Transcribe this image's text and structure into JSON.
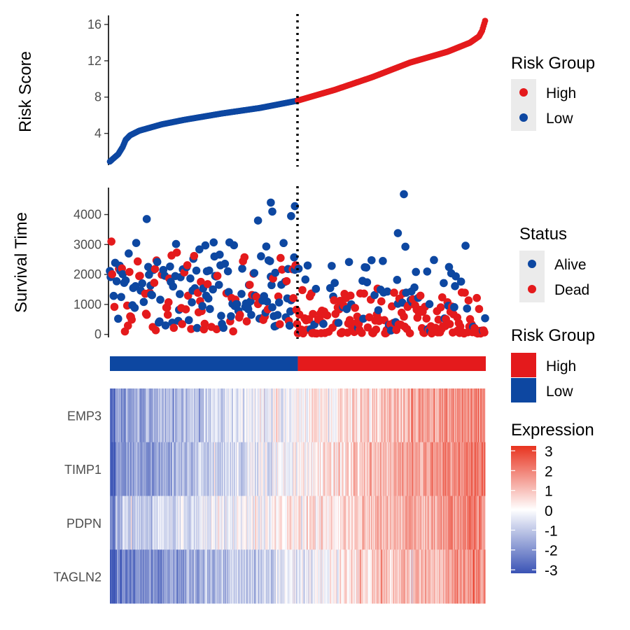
{
  "colors": {
    "high": "#E41A1C",
    "low": "#0D47A1",
    "heat_low": "#3A53B5",
    "heat_mid": "#FFFFFF",
    "heat_high": "#E8331F",
    "legend_bg": "#EBEBEB"
  },
  "chart_data": [
    {
      "type": "scatter",
      "panel": "risk-score",
      "ylabel": "Risk Score",
      "yticks": [
        4,
        8,
        12,
        16
      ],
      "ylim": [
        0.5,
        17
      ],
      "n_samples": 500,
      "cutoff_rank": 250,
      "cutoff_score": 7.6,
      "curve": [
        {
          "rank": 1,
          "score": 0.9
        },
        {
          "rank": 5,
          "score": 1.2
        },
        {
          "rank": 12,
          "score": 1.7
        },
        {
          "rank": 18,
          "score": 2.5
        },
        {
          "rank": 22,
          "score": 3.3
        },
        {
          "rank": 28,
          "score": 3.8
        },
        {
          "rank": 40,
          "score": 4.3
        },
        {
          "rank": 70,
          "score": 5.0
        },
        {
          "rank": 100,
          "score": 5.5
        },
        {
          "rank": 150,
          "score": 6.2
        },
        {
          "rank": 200,
          "score": 6.8
        },
        {
          "rank": 250,
          "score": 7.6
        },
        {
          "rank": 300,
          "score": 8.8
        },
        {
          "rank": 350,
          "score": 10.2
        },
        {
          "rank": 400,
          "score": 11.8
        },
        {
          "rank": 450,
          "score": 13.0
        },
        {
          "rank": 480,
          "score": 14.0
        },
        {
          "rank": 492,
          "score": 14.7
        },
        {
          "rank": 496,
          "score": 15.3
        },
        {
          "rank": 500,
          "score": 16.4
        }
      ]
    },
    {
      "type": "scatter",
      "panel": "survival-time",
      "ylabel": "Survival Time",
      "yticks": [
        0,
        1000,
        2000,
        3000,
        4000
      ],
      "ylim": [
        -100,
        4900
      ],
      "highlights": [
        {
          "rank": 215,
          "time": 4400,
          "status": "Alive"
        },
        {
          "rank": 217,
          "time": 4100,
          "status": "Alive"
        },
        {
          "rank": 247,
          "time": 4280,
          "status": "Alive"
        },
        {
          "rank": 242,
          "time": 3950,
          "status": "Alive"
        },
        {
          "rank": 392,
          "time": 4680,
          "status": "Alive"
        },
        {
          "rank": 384,
          "time": 3380,
          "status": "Alive"
        },
        {
          "rank": 198,
          "time": 3800,
          "status": "Alive"
        },
        {
          "rank": 50,
          "time": 3850,
          "status": "Alive"
        },
        {
          "rank": 3,
          "time": 3100,
          "status": "Dead"
        }
      ]
    },
    {
      "type": "heatmap",
      "panel": "expression",
      "genes": [
        "EMP3",
        "TIMP1",
        "PDPN",
        "TAGLN2"
      ],
      "value_range": [
        -3,
        3
      ],
      "trend_start": [
        -1.8,
        -2.0,
        -1.1,
        -2.4
      ],
      "trend_end": [
        1.9,
        2.1,
        1.7,
        1.8
      ]
    }
  ],
  "legends": {
    "risk_group_points": {
      "title": "Risk Group",
      "items": [
        {
          "label": "High",
          "color": "#E41A1C"
        },
        {
          "label": "Low",
          "color": "#0D47A1"
        }
      ]
    },
    "status": {
      "title": "Status",
      "items": [
        {
          "label": "Alive",
          "color": "#0D47A1"
        },
        {
          "label": "Dead",
          "color": "#E41A1C"
        }
      ]
    },
    "risk_group_bar": {
      "title": "Risk Group",
      "items": [
        {
          "label": "High",
          "color": "#E41A1C"
        },
        {
          "label": "Low",
          "color": "#0D47A1"
        }
      ]
    },
    "expression": {
      "title": "Expression",
      "ticks": [
        "3",
        "2",
        "1",
        "0",
        "-1",
        "-2",
        "-3"
      ]
    }
  }
}
